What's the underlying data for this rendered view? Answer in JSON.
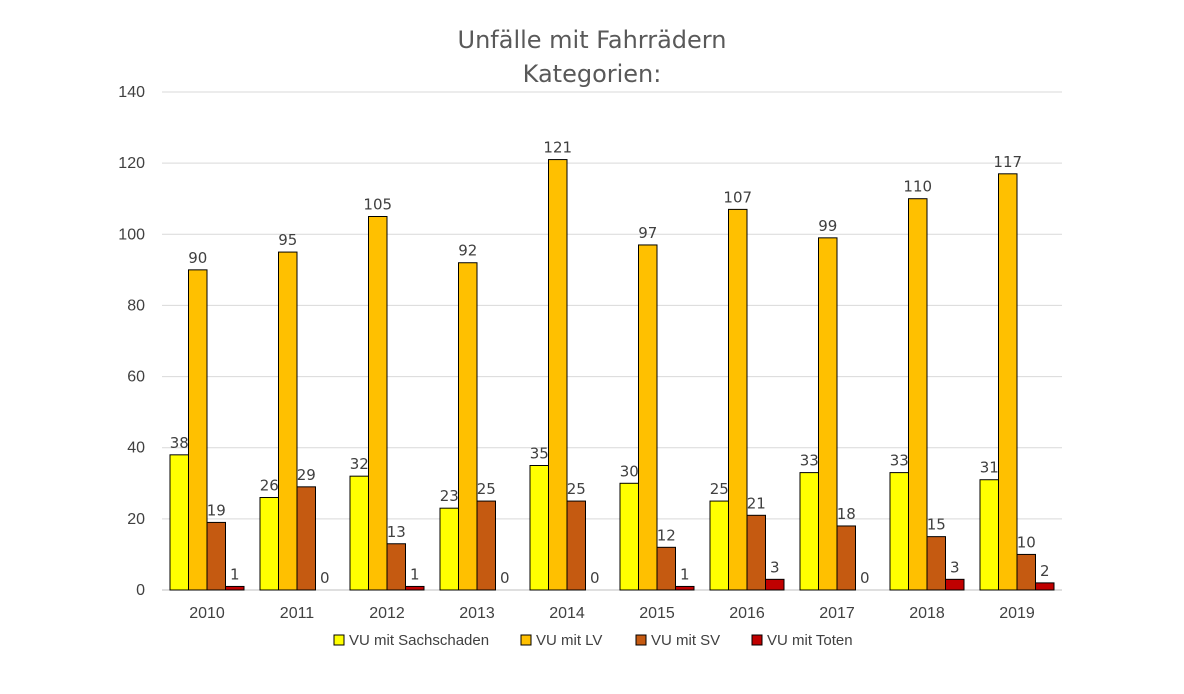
{
  "chart_data": {
    "type": "bar",
    "title": "Unfälle mit Fahrrädern",
    "subtitle": "Kategorien:",
    "categories": [
      "2010",
      "2011",
      "2012",
      "2013",
      "2014",
      "2015",
      "2016",
      "2017",
      "2018",
      "2019"
    ],
    "series": [
      {
        "name": "VU mit Sachschaden",
        "color": "#FFFF00",
        "values": [
          38,
          26,
          32,
          23,
          35,
          30,
          25,
          33,
          33,
          31
        ]
      },
      {
        "name": "VU mit LV",
        "color": "#FFC000",
        "values": [
          90,
          95,
          105,
          92,
          121,
          97,
          107,
          99,
          110,
          117
        ]
      },
      {
        "name": "VU mit SV",
        "color": "#C55A11",
        "values": [
          19,
          29,
          13,
          25,
          25,
          12,
          21,
          18,
          15,
          10
        ]
      },
      {
        "name": "VU mit Toten",
        "color": "#C00000",
        "values": [
          1,
          0,
          1,
          0,
          0,
          1,
          3,
          0,
          3,
          2
        ]
      }
    ],
    "ylim": [
      0,
      140
    ],
    "yticks": [
      "0",
      "20",
      "40",
      "60",
      "80",
      "100",
      "120",
      "140"
    ],
    "xlabel": "",
    "ylabel": "",
    "grid": true,
    "legend": "bottom",
    "data_labels": true
  }
}
